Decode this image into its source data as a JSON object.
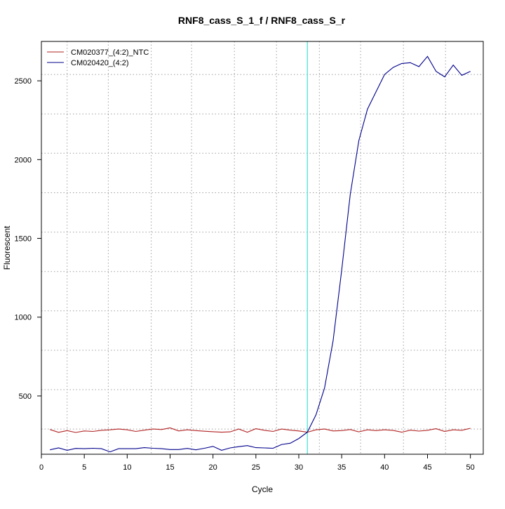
{
  "chart_data": {
    "type": "line",
    "title": "RNF8_cass_S_1_f / RNF8_cass_S_r",
    "xlabel": "Cycle",
    "ylabel": "Fluorescent",
    "xlim": [
      0,
      51.5
    ],
    "ylim": [
      130,
      2750
    ],
    "x_ticks": [
      0,
      5,
      10,
      15,
      20,
      25,
      30,
      35,
      40,
      45,
      50
    ],
    "y_ticks": [
      500,
      1000,
      1500,
      2000,
      2500
    ],
    "grid": {
      "style": "dotted",
      "color": "#a0a0a0",
      "x_positions": [
        3,
        7.8,
        12.8,
        17.5,
        22.5,
        27.4,
        32.4,
        37.2,
        42.2,
        47.1
      ],
      "y_positions": [
        290,
        540,
        790,
        1040,
        1290,
        1540,
        1790,
        2040,
        2290,
        2540
      ]
    },
    "threshold": {
      "x": 31,
      "color": "#40e0d0"
    },
    "legend_position": "top-left",
    "series": [
      {
        "name": "CM020377_(4:2)_NTC",
        "color": "#b22222",
        "x": [
          1,
          2,
          3,
          4,
          5,
          6,
          7,
          8,
          9,
          10,
          11,
          12,
          13,
          14,
          15,
          16,
          17,
          18,
          19,
          20,
          21,
          22,
          23,
          24,
          25,
          26,
          27,
          28,
          29,
          30,
          31,
          32,
          33,
          34,
          35,
          36,
          37,
          38,
          39,
          40,
          41,
          42,
          43,
          44,
          45,
          46,
          47,
          48,
          49,
          50
        ],
        "y": [
          287,
          269,
          280,
          268,
          278,
          275,
          282,
          285,
          290,
          285,
          275,
          283,
          290,
          287,
          297,
          278,
          285,
          280,
          276,
          273,
          270,
          272,
          290,
          270,
          292,
          282,
          275,
          290,
          283,
          278,
          270,
          285,
          290,
          278,
          280,
          287,
          272,
          285,
          280,
          285,
          281,
          270,
          283,
          277,
          282,
          292,
          275,
          285,
          282,
          295
        ]
      },
      {
        "name": "CM020420_(4:2)",
        "color": "#00008b",
        "x": [
          1,
          2,
          3,
          4,
          5,
          6,
          7,
          8,
          9,
          10,
          11,
          12,
          13,
          14,
          15,
          16,
          17,
          18,
          19,
          20,
          21,
          22,
          23,
          24,
          25,
          26,
          27,
          28,
          29,
          30,
          31,
          32,
          33,
          34,
          35,
          36,
          37,
          38,
          39,
          40,
          41,
          42,
          43,
          44,
          45,
          46,
          47,
          48,
          49,
          50
        ],
        "y": [
          158,
          170,
          155,
          167,
          165,
          168,
          165,
          145,
          165,
          165,
          165,
          172,
          168,
          165,
          160,
          160,
          167,
          158,
          168,
          180,
          155,
          170,
          178,
          185,
          172,
          170,
          168,
          192,
          200,
          230,
          270,
          380,
          550,
          850,
          1300,
          1780,
          2120,
          2320,
          2430,
          2540,
          2585,
          2610,
          2615,
          2590,
          2655,
          2560,
          2525,
          2600,
          2535,
          2560
        ]
      }
    ]
  }
}
